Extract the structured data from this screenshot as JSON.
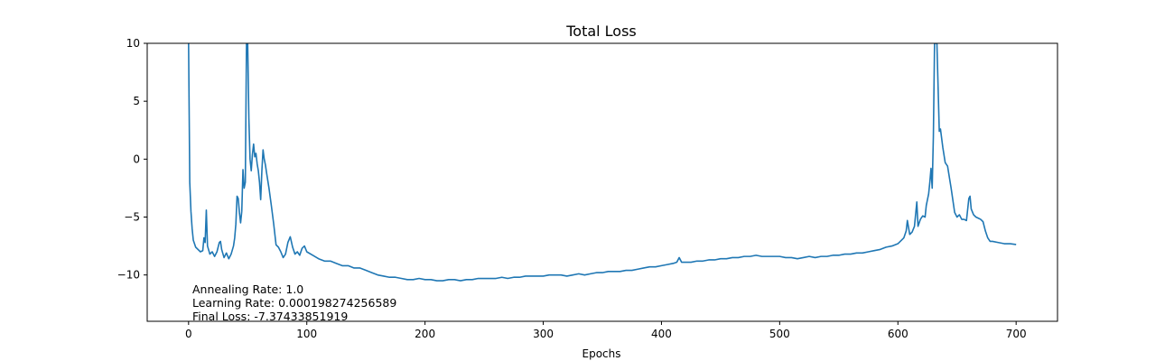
{
  "chart_data": {
    "type": "line",
    "title": "Total Loss",
    "xlabel": "Epochs",
    "ylabel": "",
    "xlim": [
      -35,
      735
    ],
    "ylim": [
      -14,
      10
    ],
    "grid": false,
    "xticks": [
      0,
      100,
      200,
      300,
      400,
      500,
      600,
      700
    ],
    "yticks": [
      -10,
      -5,
      0,
      5,
      10
    ],
    "xtick_labels": [
      "0",
      "100",
      "200",
      "300",
      "400",
      "500",
      "600",
      "700"
    ],
    "ytick_labels": [
      "−10",
      "−5",
      "0",
      "5",
      "10"
    ],
    "annotations": [
      "Annealing Rate: 1.0",
      "Learning Rate: 0.000198274256589",
      "Final Loss: -7.37433851919"
    ],
    "series": [
      {
        "color": "#1f77b4",
        "points": [
          [
            0,
            10
          ],
          [
            1,
            -2
          ],
          [
            2,
            -4.5
          ],
          [
            3,
            -6
          ],
          [
            4,
            -7
          ],
          [
            6,
            -7.6
          ],
          [
            8,
            -7.8
          ],
          [
            10,
            -8
          ],
          [
            12,
            -7.9
          ],
          [
            13,
            -6.8
          ],
          [
            14,
            -7.2
          ],
          [
            15,
            -4.4
          ],
          [
            16,
            -7.5
          ],
          [
            18,
            -8.2
          ],
          [
            20,
            -8
          ],
          [
            22,
            -8.4
          ],
          [
            24,
            -8
          ],
          [
            26,
            -7.2
          ],
          [
            27,
            -7.1
          ],
          [
            28,
            -7.8
          ],
          [
            30,
            -8.5
          ],
          [
            32,
            -8.1
          ],
          [
            34,
            -8.6
          ],
          [
            36,
            -8.2
          ],
          [
            38,
            -7.5
          ],
          [
            39,
            -6.8
          ],
          [
            40,
            -5.6
          ],
          [
            41,
            -3.2
          ],
          [
            42,
            -3.4
          ],
          [
            43,
            -4.6
          ],
          [
            44,
            -5.5
          ],
          [
            45,
            -4.5
          ],
          [
            46,
            -0.9
          ],
          [
            47,
            -2.5
          ],
          [
            48,
            -2
          ],
          [
            49,
            10
          ],
          [
            50,
            10
          ],
          [
            51,
            3.5
          ],
          [
            52,
            0
          ],
          [
            53,
            -1
          ],
          [
            54,
            0.4
          ],
          [
            55,
            1.3
          ],
          [
            56,
            0.2
          ],
          [
            57,
            0.5
          ],
          [
            58,
            -0.4
          ],
          [
            59,
            -1
          ],
          [
            60,
            -2
          ],
          [
            61,
            -3.5
          ],
          [
            62,
            -1
          ],
          [
            63,
            0.8
          ],
          [
            64,
            0
          ],
          [
            65,
            -0.5
          ],
          [
            66,
            -1.2
          ],
          [
            68,
            -2.5
          ],
          [
            70,
            -4
          ],
          [
            72,
            -5.6
          ],
          [
            74,
            -7.4
          ],
          [
            76,
            -7.6
          ],
          [
            78,
            -8
          ],
          [
            80,
            -8.5
          ],
          [
            82,
            -8.2
          ],
          [
            84,
            -7.2
          ],
          [
            86,
            -6.7
          ],
          [
            88,
            -7.6
          ],
          [
            90,
            -8.2
          ],
          [
            92,
            -8
          ],
          [
            94,
            -8.3
          ],
          [
            96,
            -7.7
          ],
          [
            98,
            -7.5
          ],
          [
            100,
            -8
          ],
          [
            105,
            -8.3
          ],
          [
            110,
            -8.6
          ],
          [
            115,
            -8.8
          ],
          [
            120,
            -8.8
          ],
          [
            125,
            -9
          ],
          [
            130,
            -9.2
          ],
          [
            135,
            -9.2
          ],
          [
            140,
            -9.4
          ],
          [
            145,
            -9.4
          ],
          [
            150,
            -9.6
          ],
          [
            155,
            -9.8
          ],
          [
            160,
            -10
          ],
          [
            165,
            -10.1
          ],
          [
            170,
            -10.2
          ],
          [
            175,
            -10.2
          ],
          [
            180,
            -10.3
          ],
          [
            185,
            -10.4
          ],
          [
            190,
            -10.4
          ],
          [
            195,
            -10.3
          ],
          [
            200,
            -10.4
          ],
          [
            205,
            -10.4
          ],
          [
            210,
            -10.5
          ],
          [
            215,
            -10.5
          ],
          [
            220,
            -10.4
          ],
          [
            225,
            -10.4
          ],
          [
            230,
            -10.5
          ],
          [
            235,
            -10.4
          ],
          [
            240,
            -10.4
          ],
          [
            245,
            -10.3
          ],
          [
            250,
            -10.3
          ],
          [
            255,
            -10.3
          ],
          [
            260,
            -10.3
          ],
          [
            265,
            -10.2
          ],
          [
            270,
            -10.3
          ],
          [
            275,
            -10.2
          ],
          [
            280,
            -10.2
          ],
          [
            285,
            -10.1
          ],
          [
            290,
            -10.1
          ],
          [
            295,
            -10.1
          ],
          [
            300,
            -10.1
          ],
          [
            305,
            -10
          ],
          [
            310,
            -10
          ],
          [
            315,
            -10
          ],
          [
            320,
            -10.1
          ],
          [
            325,
            -10
          ],
          [
            330,
            -9.9
          ],
          [
            335,
            -10
          ],
          [
            340,
            -9.9
          ],
          [
            345,
            -9.8
          ],
          [
            350,
            -9.8
          ],
          [
            355,
            -9.7
          ],
          [
            360,
            -9.7
          ],
          [
            365,
            -9.7
          ],
          [
            370,
            -9.6
          ],
          [
            375,
            -9.6
          ],
          [
            380,
            -9.5
          ],
          [
            385,
            -9.4
          ],
          [
            390,
            -9.3
          ],
          [
            395,
            -9.3
          ],
          [
            400,
            -9.2
          ],
          [
            405,
            -9.1
          ],
          [
            410,
            -9
          ],
          [
            413,
            -8.9
          ],
          [
            415,
            -8.5
          ],
          [
            417,
            -8.9
          ],
          [
            420,
            -8.9
          ],
          [
            425,
            -8.9
          ],
          [
            430,
            -8.8
          ],
          [
            435,
            -8.8
          ],
          [
            440,
            -8.7
          ],
          [
            445,
            -8.7
          ],
          [
            450,
            -8.6
          ],
          [
            455,
            -8.6
          ],
          [
            460,
            -8.5
          ],
          [
            465,
            -8.5
          ],
          [
            470,
            -8.4
          ],
          [
            475,
            -8.4
          ],
          [
            480,
            -8.3
          ],
          [
            485,
            -8.4
          ],
          [
            490,
            -8.4
          ],
          [
            495,
            -8.4
          ],
          [
            500,
            -8.4
          ],
          [
            505,
            -8.5
          ],
          [
            510,
            -8.5
          ],
          [
            515,
            -8.6
          ],
          [
            520,
            -8.5
          ],
          [
            525,
            -8.4
          ],
          [
            530,
            -8.5
          ],
          [
            535,
            -8.4
          ],
          [
            540,
            -8.4
          ],
          [
            545,
            -8.3
          ],
          [
            550,
            -8.3
          ],
          [
            555,
            -8.2
          ],
          [
            560,
            -8.2
          ],
          [
            565,
            -8.1
          ],
          [
            570,
            -8.1
          ],
          [
            575,
            -8
          ],
          [
            580,
            -7.9
          ],
          [
            585,
            -7.8
          ],
          [
            590,
            -7.6
          ],
          [
            595,
            -7.5
          ],
          [
            600,
            -7.3
          ],
          [
            603,
            -7
          ],
          [
            605,
            -6.8
          ],
          [
            607,
            -6.2
          ],
          [
            608,
            -5.3
          ],
          [
            610,
            -6.5
          ],
          [
            612,
            -6.3
          ],
          [
            614,
            -5.8
          ],
          [
            616,
            -3.7
          ],
          [
            617,
            -5.8
          ],
          [
            619,
            -5.2
          ],
          [
            621,
            -4.9
          ],
          [
            623,
            -5
          ],
          [
            624,
            -4
          ],
          [
            625,
            -3.5
          ],
          [
            626,
            -3
          ],
          [
            627,
            -2
          ],
          [
            628,
            -0.8
          ],
          [
            629,
            -2.5
          ],
          [
            630,
            2
          ],
          [
            631,
            10
          ],
          [
            633,
            10
          ],
          [
            635,
            2.4
          ],
          [
            636,
            2.6
          ],
          [
            638,
            1
          ],
          [
            640,
            -0.3
          ],
          [
            642,
            -0.6
          ],
          [
            645,
            -2.5
          ],
          [
            648,
            -4.6
          ],
          [
            650,
            -5
          ],
          [
            652,
            -4.8
          ],
          [
            654,
            -5.2
          ],
          [
            656,
            -5.2
          ],
          [
            658,
            -5.3
          ],
          [
            660,
            -3.4
          ],
          [
            661,
            -3.2
          ],
          [
            662,
            -4.3
          ],
          [
            664,
            -4.8
          ],
          [
            666,
            -5
          ],
          [
            668,
            -5.1
          ],
          [
            670,
            -5.2
          ],
          [
            672,
            -5.4
          ],
          [
            674,
            -6.2
          ],
          [
            676,
            -6.8
          ],
          [
            678,
            -7.1
          ],
          [
            680,
            -7.1
          ],
          [
            685,
            -7.2
          ],
          [
            690,
            -7.3
          ],
          [
            695,
            -7.3
          ],
          [
            700,
            -7.37
          ]
        ]
      }
    ]
  }
}
